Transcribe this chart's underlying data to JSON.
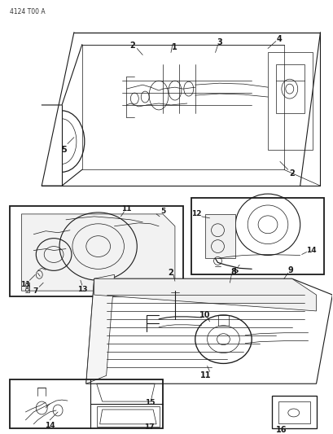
{
  "bg": "#ffffff",
  "lc": "#1a1a1a",
  "tc": "#1a1a1a",
  "fig_w": 4.1,
  "fig_h": 5.33,
  "dpi": 100,
  "part_label": "4124 T00 A",
  "label_fs": 5.5,
  "num_fs": 6.5,
  "lw_main": 0.8,
  "lw_thin": 0.5,
  "lw_thick": 1.3
}
